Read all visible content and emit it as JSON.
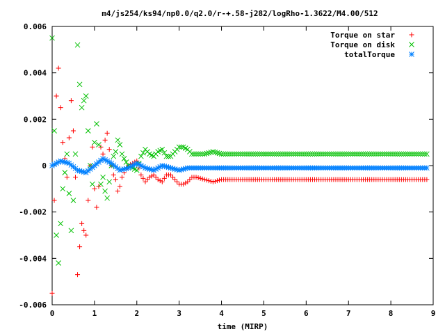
{
  "chart_data": {
    "type": "scatter",
    "title": "m4/js254/ks94/np0.0/q2.0/r-+.58-j282/logRho-1.3622/M4.00/512",
    "xlabel": "time (MIRP)",
    "ylabel": "",
    "xlim": [
      0,
      9
    ],
    "ylim": [
      -0.006,
      0.006
    ],
    "xticks": [
      0,
      1,
      2,
      3,
      4,
      5,
      6,
      7,
      8,
      9
    ],
    "xtick_labels": [
      "0",
      "1",
      "2",
      "3",
      "4",
      "5",
      "6",
      "7",
      "8",
      "9"
    ],
    "yticks": [
      -0.006,
      -0.004,
      -0.002,
      0,
      0.002,
      0.004,
      0.006
    ],
    "ytick_labels": [
      "-0.006",
      "-0.004",
      "-0.002",
      "0",
      "0.002",
      "0.004",
      "0.006"
    ],
    "grid": false,
    "legend_position": "top-right",
    "series": [
      {
        "name": "Torque on star",
        "marker": "plus",
        "color": "#ff0000",
        "x": [
          0.0,
          0.05,
          0.1,
          0.15,
          0.2,
          0.25,
          0.3,
          0.35,
          0.4,
          0.45,
          0.5,
          0.55,
          0.6,
          0.65,
          0.7,
          0.75,
          0.8,
          0.85,
          0.9,
          0.95,
          1.0,
          1.05,
          1.1,
          1.15,
          1.2,
          1.25,
          1.3,
          1.35,
          1.4,
          1.45,
          1.5,
          1.55,
          1.6,
          1.65,
          1.7,
          1.8,
          1.9,
          2.0,
          2.1,
          2.2,
          2.3,
          2.4,
          2.5,
          2.6,
          2.7,
          2.8,
          2.9,
          3.0,
          3.1,
          3.2,
          3.3,
          3.4,
          3.6,
          3.8,
          4.0,
          4.5,
          5.0,
          5.5,
          6.0,
          6.5,
          7.0,
          7.5,
          8.0,
          8.5,
          8.85
        ],
        "y": [
          -0.0055,
          -0.0015,
          0.003,
          0.0042,
          0.0025,
          0.001,
          0.0003,
          -0.0005,
          0.0012,
          0.0028,
          0.0015,
          -0.0005,
          -0.0047,
          -0.0035,
          -0.0025,
          -0.0028,
          -0.003,
          -0.0015,
          0.0,
          0.0008,
          -0.001,
          -0.0018,
          -0.0009,
          0.0008,
          0.0005,
          0.0011,
          0.0014,
          0.0007,
          0.0,
          -0.0004,
          -0.0006,
          -0.0011,
          -0.0009,
          -0.0005,
          -0.0003,
          0.0,
          0.0001,
          0.0002,
          -0.0004,
          -0.0007,
          -0.0005,
          -0.0004,
          -0.0006,
          -0.0007,
          -0.0004,
          -0.0004,
          -0.0006,
          -0.0008,
          -0.0008,
          -0.0007,
          -0.0005,
          -0.0005,
          -0.0006,
          -0.0007,
          -0.0006,
          -0.0006,
          -0.0006,
          -0.0006,
          -0.0006,
          -0.0006,
          -0.0006,
          -0.0006,
          -0.0006,
          -0.0006,
          -0.0006
        ]
      },
      {
        "name": "Torque on disk",
        "marker": "cross",
        "color": "#00c000",
        "x": [
          0.0,
          0.05,
          0.1,
          0.15,
          0.2,
          0.25,
          0.3,
          0.35,
          0.4,
          0.45,
          0.5,
          0.55,
          0.6,
          0.65,
          0.7,
          0.75,
          0.8,
          0.85,
          0.9,
          0.95,
          1.0,
          1.05,
          1.1,
          1.15,
          1.2,
          1.25,
          1.3,
          1.35,
          1.4,
          1.45,
          1.5,
          1.55,
          1.6,
          1.65,
          1.7,
          1.8,
          1.9,
          2.0,
          2.1,
          2.2,
          2.3,
          2.4,
          2.5,
          2.6,
          2.7,
          2.8,
          2.9,
          3.0,
          3.1,
          3.2,
          3.3,
          3.4,
          3.6,
          3.8,
          4.0,
          4.5,
          5.0,
          5.5,
          6.0,
          6.5,
          7.0,
          7.5,
          8.0,
          8.5,
          8.85
        ],
        "y": [
          0.0055,
          0.0015,
          -0.003,
          -0.0042,
          -0.0025,
          -0.001,
          -0.0003,
          0.0005,
          -0.0012,
          -0.0028,
          -0.0015,
          0.0005,
          0.0052,
          0.0035,
          0.0025,
          0.0028,
          0.003,
          0.0015,
          0.0,
          -0.0008,
          0.001,
          0.0018,
          0.0009,
          -0.0008,
          -0.0005,
          -0.0011,
          -0.0014,
          -0.0007,
          0.0,
          0.0004,
          0.0006,
          0.0011,
          0.0009,
          0.0005,
          0.0003,
          0.0,
          -0.0001,
          -0.0002,
          0.0004,
          0.0007,
          0.0005,
          0.0004,
          0.0006,
          0.0007,
          0.0004,
          0.0004,
          0.0006,
          0.0008,
          0.0008,
          0.0007,
          0.0005,
          0.0005,
          0.0005,
          0.0006,
          0.0005,
          0.0005,
          0.0005,
          0.0005,
          0.0005,
          0.0005,
          0.0005,
          0.0005,
          0.0005,
          0.0005,
          0.0005
        ]
      },
      {
        "name": "totalTorque",
        "marker": "star",
        "color": "#0080ff",
        "x": [
          0.0,
          0.2,
          0.4,
          0.6,
          0.8,
          1.0,
          1.2,
          1.4,
          1.6,
          1.8,
          2.0,
          2.2,
          2.4,
          2.6,
          2.8,
          3.0,
          3.2,
          3.4,
          3.6,
          3.8,
          4.0,
          4.5,
          5.0,
          5.5,
          6.0,
          6.5,
          7.0,
          7.5,
          8.0,
          8.5,
          8.85
        ],
        "y": [
          0.0,
          0.0002,
          0.0001,
          -0.0002,
          -0.0003,
          0.0,
          0.0003,
          0.0001,
          -0.0002,
          -0.0001,
          0.0001,
          -0.0001,
          -0.0002,
          0.0,
          -0.0001,
          -0.0002,
          -0.0001,
          -0.0001,
          -0.0001,
          -0.0001,
          -0.0001,
          -0.0001,
          -0.0001,
          -0.0001,
          -0.0001,
          -0.0001,
          -0.0001,
          -0.0001,
          -0.0001,
          -0.0001,
          -0.0001
        ]
      }
    ]
  }
}
